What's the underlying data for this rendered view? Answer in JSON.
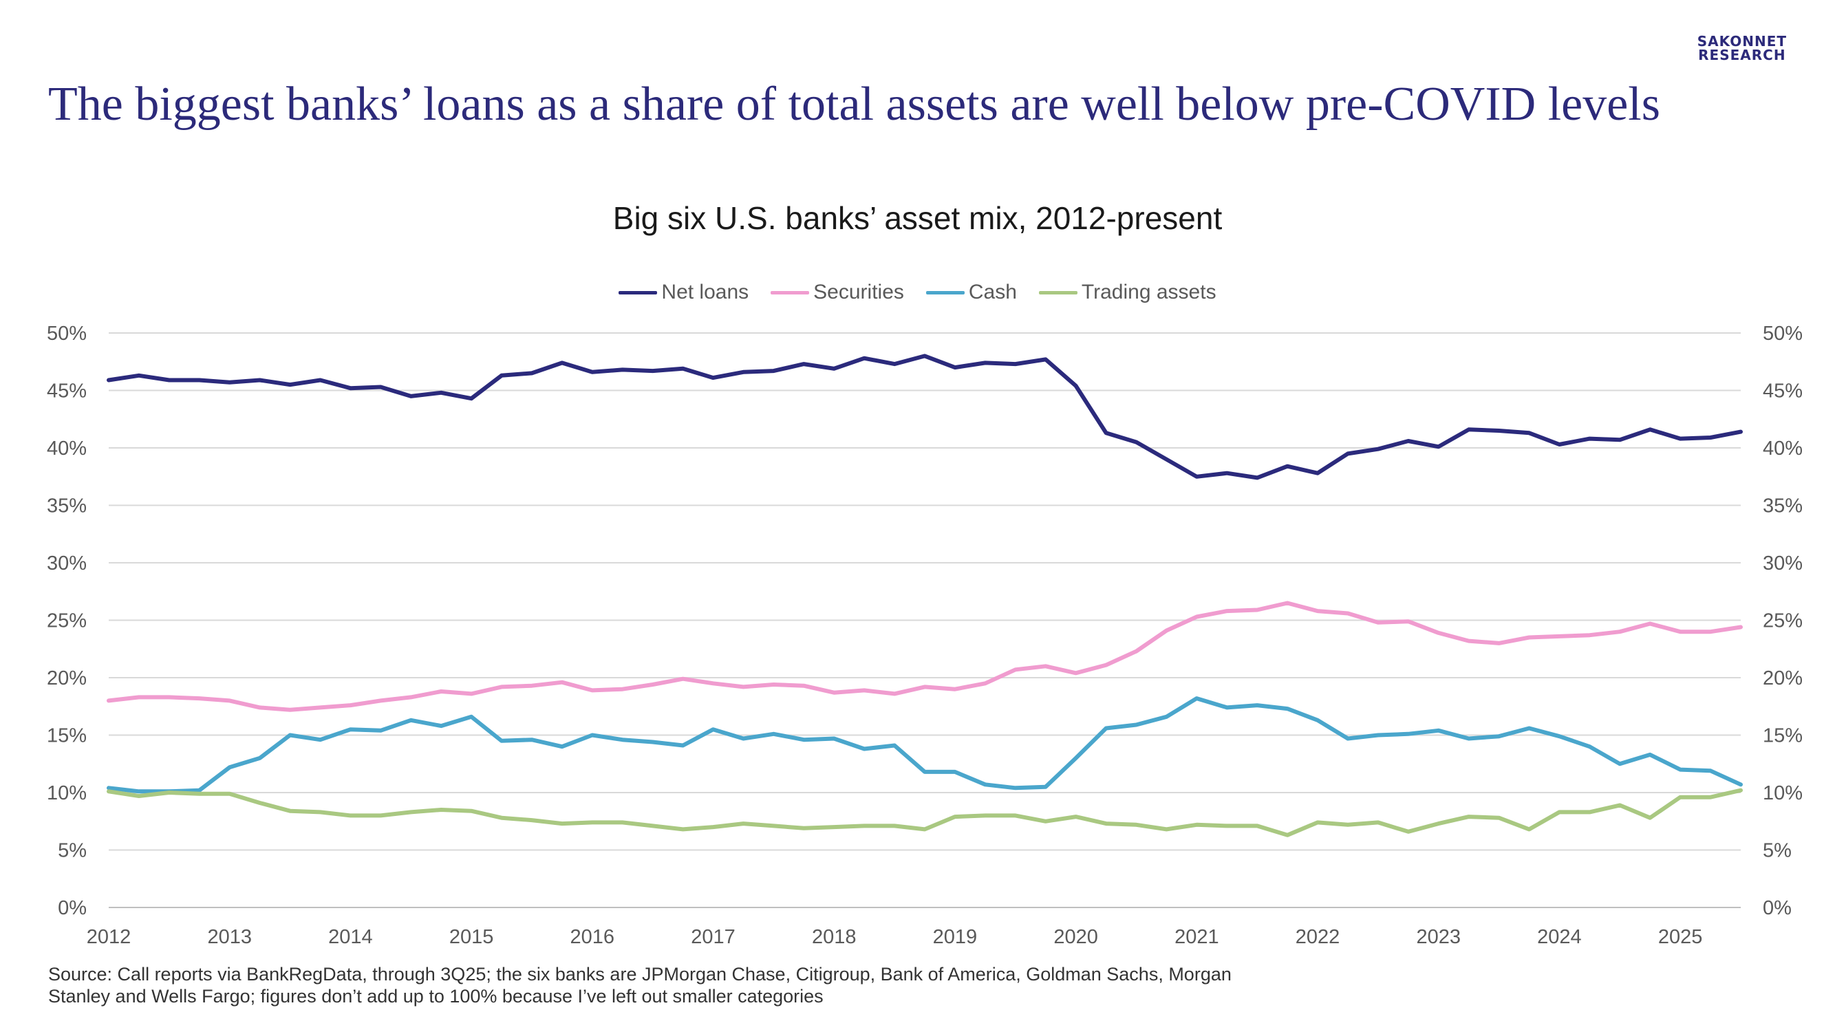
{
  "logo": {
    "line1": "SAKONNET",
    "line2": "RESEARCH"
  },
  "headline": "The biggest banks’ loans as a share of total assets are well below pre-COVID levels",
  "source": "Source: Call reports via BankRegData, through 3Q25; the six banks are JPMorgan Chase, Citigroup, Bank of America, Goldman Sachs, Morgan Stanley and Wells Fargo; figures don’t add up to 100% because I’ve left out smaller categories",
  "chart_data": {
    "type": "line",
    "title": "Big six U.S. banks’ asset mix, 2012-present",
    "xlabel": "",
    "ylabel": "",
    "xlim": [
      2012.0,
      2025.5
    ],
    "ylim": [
      0,
      50
    ],
    "y_ticks": [
      "0%",
      "5%",
      "10%",
      "15%",
      "20%",
      "25%",
      "30%",
      "35%",
      "40%",
      "45%",
      "50%"
    ],
    "x_ticks": [
      "2012",
      "2013",
      "2014",
      "2015",
      "2016",
      "2017",
      "2018",
      "2019",
      "2020",
      "2021",
      "2022",
      "2023",
      "2024",
      "2025"
    ],
    "gridlines": true,
    "legend_position": "top-center",
    "dual_y_axis_labels": true,
    "x": [
      2012.0,
      2012.25,
      2012.5,
      2012.75,
      2013.0,
      2013.25,
      2013.5,
      2013.75,
      2014.0,
      2014.25,
      2014.5,
      2014.75,
      2015.0,
      2015.25,
      2015.5,
      2015.75,
      2016.0,
      2016.25,
      2016.5,
      2016.75,
      2017.0,
      2017.25,
      2017.5,
      2017.75,
      2018.0,
      2018.25,
      2018.5,
      2018.75,
      2019.0,
      2019.25,
      2019.5,
      2019.75,
      2020.0,
      2020.25,
      2020.5,
      2020.75,
      2021.0,
      2021.25,
      2021.5,
      2021.75,
      2022.0,
      2022.25,
      2022.5,
      2022.75,
      2023.0,
      2023.25,
      2023.5,
      2023.75,
      2024.0,
      2024.25,
      2024.5,
      2024.75,
      2025.0,
      2025.25,
      2025.5
    ],
    "series": [
      {
        "name": "Net loans",
        "color": "#2b2a7c",
        "values": [
          45.9,
          46.3,
          45.9,
          45.9,
          45.7,
          45.9,
          45.5,
          45.9,
          45.2,
          45.3,
          44.5,
          44.8,
          44.3,
          46.3,
          46.5,
          47.4,
          46.6,
          46.8,
          46.7,
          46.9,
          46.1,
          46.6,
          46.7,
          47.3,
          46.9,
          47.8,
          47.3,
          48.0,
          47.0,
          47.4,
          47.3,
          47.7,
          45.4,
          41.3,
          40.5,
          39.0,
          37.5,
          37.8,
          37.4,
          38.4,
          37.8,
          39.5,
          39.9,
          40.6,
          40.1,
          41.6,
          41.5,
          41.3,
          40.3,
          40.8,
          40.7,
          41.6,
          40.8,
          40.9,
          41.4
        ]
      },
      {
        "name": "Securities",
        "color": "#f09ccf",
        "values": [
          18.0,
          18.3,
          18.3,
          18.2,
          18.0,
          17.4,
          17.2,
          17.4,
          17.6,
          18.0,
          18.3,
          18.8,
          18.6,
          19.2,
          19.3,
          19.6,
          18.9,
          19.0,
          19.4,
          19.9,
          19.5,
          19.2,
          19.4,
          19.3,
          18.7,
          18.9,
          18.6,
          19.2,
          19.0,
          19.5,
          20.7,
          21.0,
          20.4,
          21.1,
          22.3,
          24.1,
          25.3,
          25.8,
          25.9,
          26.5,
          25.8,
          25.6,
          24.8,
          24.9,
          23.9,
          23.2,
          23.0,
          23.5,
          23.6,
          23.7,
          24.0,
          24.7,
          24.0,
          24.0,
          24.4
        ]
      },
      {
        "name": "Cash",
        "color": "#4aa6cc",
        "values": [
          10.4,
          10.1,
          10.1,
          10.2,
          12.2,
          13.0,
          15.0,
          14.6,
          15.5,
          15.4,
          16.3,
          15.8,
          16.6,
          14.5,
          14.6,
          14.0,
          15.0,
          14.6,
          14.4,
          14.1,
          15.5,
          14.7,
          15.1,
          14.6,
          14.7,
          13.8,
          14.1,
          11.8,
          11.8,
          10.7,
          10.4,
          10.5,
          13.0,
          15.6,
          15.9,
          16.6,
          18.2,
          17.4,
          17.6,
          17.3,
          16.3,
          14.7,
          15.0,
          15.1,
          15.4,
          14.7,
          14.9,
          15.6,
          14.9,
          14.0,
          12.5,
          13.3,
          12.0,
          11.9,
          10.7
        ]
      },
      {
        "name": "Trading assets",
        "color": "#a9c881",
        "values": [
          10.1,
          9.7,
          10.0,
          9.9,
          9.9,
          9.1,
          8.4,
          8.3,
          8.0,
          8.0,
          8.3,
          8.5,
          8.4,
          7.8,
          7.6,
          7.3,
          7.4,
          7.4,
          7.1,
          6.8,
          7.0,
          7.3,
          7.1,
          6.9,
          7.0,
          7.1,
          7.1,
          6.8,
          7.9,
          8.0,
          8.0,
          7.5,
          7.9,
          7.3,
          7.2,
          6.8,
          7.2,
          7.1,
          7.1,
          6.3,
          7.4,
          7.2,
          7.4,
          6.6,
          7.3,
          7.9,
          7.8,
          6.8,
          8.3,
          8.3,
          8.9,
          7.8,
          9.6,
          9.6,
          10.2
        ]
      }
    ]
  }
}
